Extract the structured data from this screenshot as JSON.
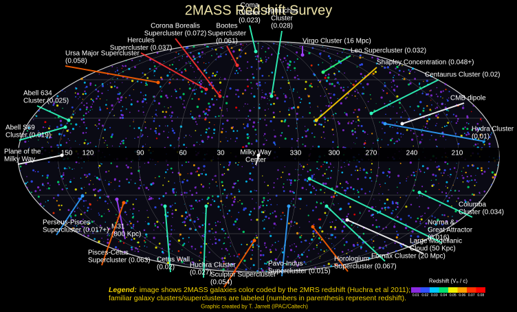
{
  "title": "2MASS Redshift Survey",
  "labels": [
    {
      "lines": [
        "Corona Borealis",
        "Supercluster (0.072)"
      ]
    },
    {
      "lines": [
        "Bootes",
        "Supercluster",
        "(0.061)"
      ]
    },
    {
      "lines": [
        "Coma",
        "Cluster",
        "(0.023)"
      ]
    },
    {
      "lines": [
        "Ophiuchus",
        "Cluster",
        "(0.028)"
      ]
    },
    {
      "lines": [
        "Virgo Cluster (16 Mpc)"
      ]
    },
    {
      "lines": [
        "Hercules",
        "Supercluster (0.037)"
      ]
    },
    {
      "lines": [
        "Ursa Major Supercluster",
        "(0.058)"
      ]
    },
    {
      "lines": [
        "Leo Supercluster (0.032)"
      ]
    },
    {
      "lines": [
        "Shapley Concentration (0.048+)"
      ]
    },
    {
      "lines": [
        "Centaurus Cluster (0.02)"
      ]
    },
    {
      "lines": [
        "Abell 634",
        "Cluster (0.025)"
      ]
    },
    {
      "lines": [
        "CMB dipole"
      ]
    },
    {
      "lines": [
        "Abell S69",
        "Cluster (0.019)"
      ]
    },
    {
      "lines": [
        "Hydra Cluster",
        "(0.01)"
      ]
    },
    {
      "lines": [
        "Plane of the",
        "Milky Way"
      ]
    },
    {
      "lines": [
        "Milky Way",
        "Center"
      ]
    },
    {
      "lines": [
        "Perseus-Pisces",
        "Supercluster (0.017+)"
      ]
    },
    {
      "lines": [
        "M31",
        "(800 Kpc)"
      ]
    },
    {
      "lines": [
        "Pisces-Cetus",
        "Supercluster (0.063)"
      ]
    },
    {
      "lines": [
        "Cetus Wall",
        "(0.02)"
      ]
    },
    {
      "lines": [
        "Huchra Cluster",
        "(0.027)"
      ]
    },
    {
      "lines": [
        "Sculptor Supercluster",
        "(0.054)"
      ]
    },
    {
      "lines": [
        "Pavo-Indus",
        "Supercluster (0.015)"
      ]
    },
    {
      "lines": [
        "Horologium",
        "Supercluster (0.067)"
      ]
    },
    {
      "lines": [
        "Fornax Cluster (20 Mpc)"
      ]
    },
    {
      "lines": [
        "Large Magellanic",
        "Cloud (50 Kpc)"
      ]
    },
    {
      "lines": [
        "Norma &",
        "Great Attractor",
        "(0.016)"
      ]
    },
    {
      "lines": [
        "Columba",
        "Cluster (0.034)"
      ]
    }
  ],
  "longitudes": [
    "150",
    "120",
    "90",
    "60",
    "30",
    "330",
    "300",
    "270",
    "240",
    "210"
  ],
  "legend": {
    "head": "Legend:",
    "line1": "image shows 2MASS galaxies color coded by the 2MRS redshift (Huchra et al 2011);",
    "line2": "familiar galaxy clusters/superclusters are labeled (numbers in parenthesis represent redshift)."
  },
  "credit": "Graphic created by T. Jarrett (IPAC/Caltech)",
  "colorbar": {
    "title": "Redshift (V₀ / c)",
    "ticks": [
      "0.01",
      "0.02",
      "0.03",
      "0.04",
      "0.05",
      "0.06",
      "0.07",
      "0.08"
    ]
  }
}
